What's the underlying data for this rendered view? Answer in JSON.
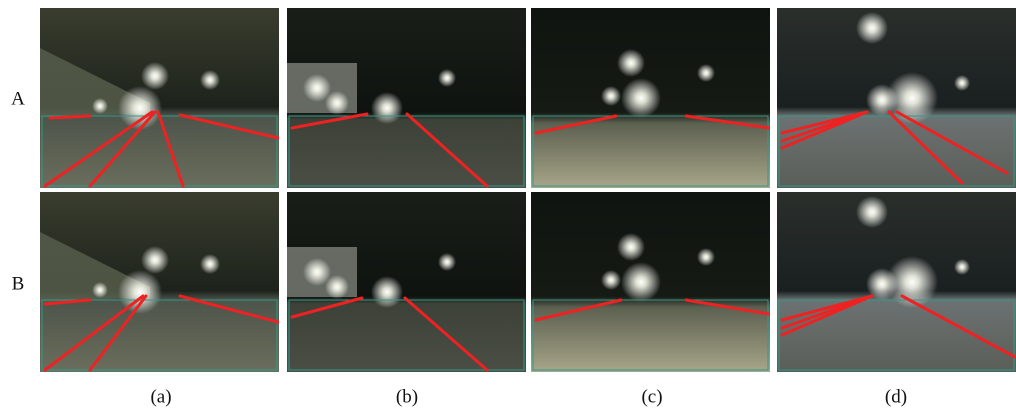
{
  "figure": {
    "rows": [
      {
        "label": "A"
      },
      {
        "label": "B"
      }
    ],
    "columns": [
      {
        "label": "(a)"
      },
      {
        "label": "(b)"
      },
      {
        "label": "(c)"
      },
      {
        "label": "(d)"
      }
    ]
  }
}
